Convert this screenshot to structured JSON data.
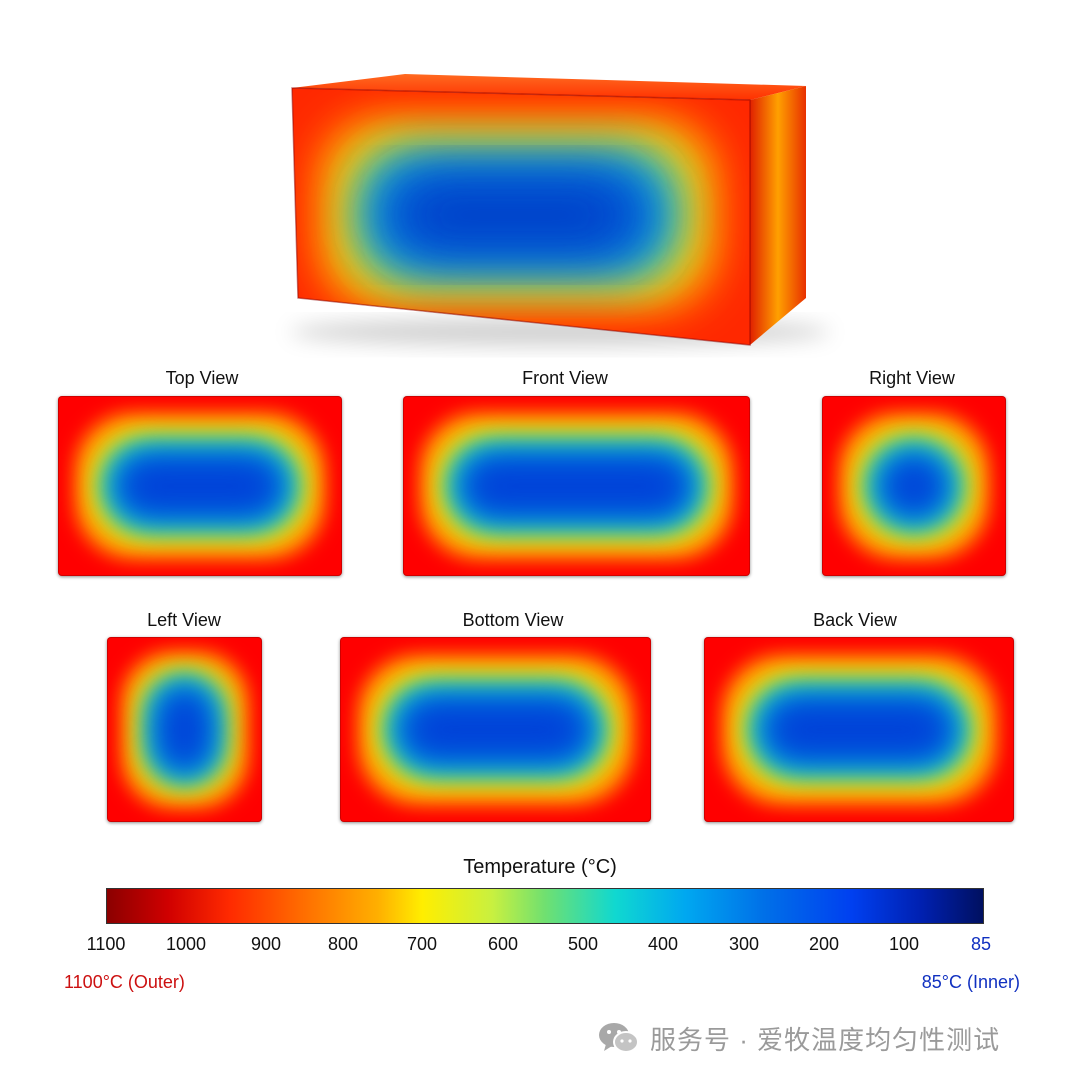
{
  "views": [
    {
      "label": "Top View"
    },
    {
      "label": "Front View"
    },
    {
      "label": "Right View"
    },
    {
      "label": "Left View"
    },
    {
      "label": "Bottom View"
    },
    {
      "label": "Back View"
    }
  ],
  "colorbar": {
    "title": "Temperature (°C)",
    "ticks": [
      "1100",
      "1000",
      "900",
      "800",
      "700",
      "600",
      "500",
      "400",
      "300",
      "200",
      "100",
      "85"
    ],
    "outer_label": "1100°C (Outer)",
    "inner_label": "85°C (Inner)"
  },
  "watermark": {
    "text": "服务号 · 爱牧温度均匀性测试",
    "icon": "wechat-icon"
  },
  "colors": {
    "hot": "#ff2a00",
    "warm": "#ffe000",
    "cool": "#10d0d0",
    "cold": "#0040d8"
  }
}
